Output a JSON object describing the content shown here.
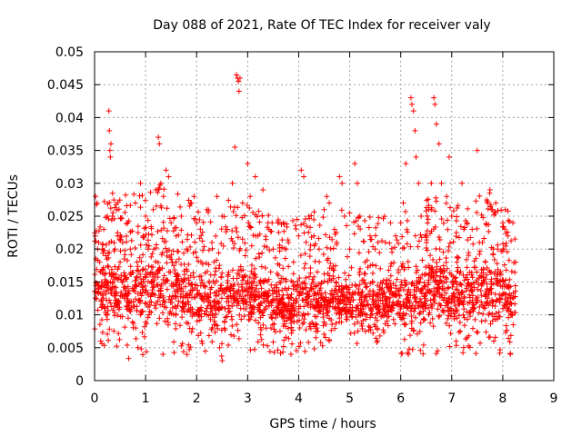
{
  "chart_data": {
    "type": "scatter",
    "title": "Day 088 of 2021, Rate Of TEC Index for receiver valy",
    "xlabel": "GPS time / hours",
    "ylabel": "ROTI / TECUs",
    "xlim": [
      0,
      9
    ],
    "ylim": [
      0,
      0.05
    ],
    "x_ticks": [
      "0",
      "1",
      "2",
      "3",
      "4",
      "5",
      "6",
      "7",
      "8",
      "9"
    ],
    "y_ticks": [
      "0",
      "0.005",
      "0.01",
      "0.015",
      "0.02",
      "0.025",
      "0.03",
      "0.035",
      "0.04",
      "0.045",
      "0.05"
    ],
    "grid": true,
    "marker": "+",
    "color": "#ff0000",
    "series": [
      {
        "name": "ROTI",
        "points": [
          [
            0.02,
            0.028
          ],
          [
            0.05,
            0.027
          ],
          [
            0.08,
            0.021
          ],
          [
            0.1,
            0.018
          ],
          [
            0.12,
            0.006
          ],
          [
            0.15,
            0.02
          ],
          [
            0.18,
            0.023
          ],
          [
            0.22,
            0.019
          ],
          [
            0.25,
            0.025
          ],
          [
            0.28,
            0.041
          ],
          [
            0.29,
            0.038
          ],
          [
            0.3,
            0.035
          ],
          [
            0.31,
            0.034
          ],
          [
            0.32,
            0.036
          ],
          [
            0.35,
            0.025
          ],
          [
            0.4,
            0.02
          ],
          [
            0.45,
            0.022
          ],
          [
            0.5,
            0.018
          ],
          [
            0.55,
            0.021
          ],
          [
            0.6,
            0.016
          ],
          [
            0.65,
            0.024
          ],
          [
            0.7,
            0.02
          ],
          [
            0.8,
            0.027
          ],
          [
            0.85,
            0.005
          ],
          [
            0.9,
            0.03
          ],
          [
            0.95,
            0.022
          ],
          [
            1.0,
            0.025
          ],
          [
            1.05,
            0.02
          ],
          [
            1.15,
            0.026
          ],
          [
            1.2,
            0.029
          ],
          [
            1.25,
            0.037
          ],
          [
            1.27,
            0.036
          ],
          [
            1.3,
            0.03
          ],
          [
            1.35,
            0.028
          ],
          [
            1.4,
            0.032
          ],
          [
            1.45,
            0.031
          ],
          [
            1.5,
            0.024
          ],
          [
            1.6,
            0.022
          ],
          [
            1.7,
            0.025
          ],
          [
            1.8,
            0.02
          ],
          [
            1.9,
            0.027
          ],
          [
            1.95,
            0.028
          ],
          [
            2.0,
            0.024
          ],
          [
            2.1,
            0.006
          ],
          [
            2.2,
            0.026
          ],
          [
            2.3,
            0.021
          ],
          [
            2.4,
            0.028
          ],
          [
            2.45,
            0.005
          ],
          [
            2.5,
            0.025
          ],
          [
            2.6,
            0.023
          ],
          [
            2.7,
            0.03
          ],
          [
            2.78,
            0.0465
          ],
          [
            2.8,
            0.046
          ],
          [
            2.82,
            0.0455
          ],
          [
            2.83,
            0.044
          ],
          [
            2.85,
            0.046
          ],
          [
            2.75,
            0.0355
          ],
          [
            2.9,
            0.027
          ],
          [
            3.0,
            0.033
          ],
          [
            3.05,
            0.028
          ],
          [
            3.15,
            0.031
          ],
          [
            3.2,
            0.022
          ],
          [
            3.3,
            0.029
          ],
          [
            3.4,
            0.024
          ],
          [
            3.5,
            0.02
          ],
          [
            3.6,
            0.016
          ],
          [
            3.7,
            0.024
          ],
          [
            3.8,
            0.021
          ],
          [
            3.85,
            0.004
          ],
          [
            3.9,
            0.018
          ],
          [
            4.0,
            0.022
          ],
          [
            4.05,
            0.032
          ],
          [
            4.1,
            0.031
          ],
          [
            4.2,
            0.025
          ],
          [
            4.3,
            0.022
          ],
          [
            4.4,
            0.02
          ],
          [
            4.5,
            0.026
          ],
          [
            4.55,
            0.028
          ],
          [
            4.6,
            0.027
          ],
          [
            4.7,
            0.023
          ],
          [
            4.8,
            0.031
          ],
          [
            4.85,
            0.03
          ],
          [
            4.9,
            0.025
          ],
          [
            5.0,
            0.02
          ],
          [
            5.1,
            0.033
          ],
          [
            5.15,
            0.03
          ],
          [
            5.2,
            0.025
          ],
          [
            5.3,
            0.018
          ],
          [
            5.4,
            0.022
          ],
          [
            5.5,
            0.02
          ],
          [
            5.6,
            0.017
          ],
          [
            5.7,
            0.021
          ],
          [
            5.8,
            0.024
          ],
          [
            5.9,
            0.022
          ],
          [
            6.0,
            0.024
          ],
          [
            6.05,
            0.027
          ],
          [
            6.1,
            0.033
          ],
          [
            6.15,
            0.004
          ],
          [
            6.2,
            0.043
          ],
          [
            6.22,
            0.042
          ],
          [
            6.25,
            0.041
          ],
          [
            6.28,
            0.038
          ],
          [
            6.3,
            0.034
          ],
          [
            6.35,
            0.03
          ],
          [
            6.4,
            0.025
          ],
          [
            6.5,
            0.022
          ],
          [
            6.55,
            0.026
          ],
          [
            6.6,
            0.03
          ],
          [
            6.65,
            0.043
          ],
          [
            6.67,
            0.042
          ],
          [
            6.7,
            0.039
          ],
          [
            6.75,
            0.036
          ],
          [
            6.8,
            0.03
          ],
          [
            6.9,
            0.028
          ],
          [
            6.95,
            0.034
          ],
          [
            7.0,
            0.025
          ],
          [
            7.1,
            0.018
          ],
          [
            7.2,
            0.03
          ],
          [
            7.3,
            0.024
          ],
          [
            7.4,
            0.023
          ],
          [
            7.5,
            0.035
          ],
          [
            7.6,
            0.021
          ],
          [
            7.7,
            0.027
          ],
          [
            7.75,
            0.029
          ],
          [
            7.8,
            0.026
          ],
          [
            7.9,
            0.02
          ],
          [
            8.0,
            0.024
          ],
          [
            8.05,
            0.026
          ],
          [
            8.1,
            0.022
          ],
          [
            8.15,
            0.004
          ],
          [
            8.2,
            0.024
          ],
          [
            8.25,
            0.018
          ]
        ],
        "dense_band": [
          [
            0.0,
            0.009,
            0.018
          ],
          [
            0.25,
            0.008,
            0.02
          ],
          [
            0.5,
            0.008,
            0.019
          ],
          [
            0.75,
            0.007,
            0.02
          ],
          [
            1.0,
            0.008,
            0.02
          ],
          [
            1.25,
            0.008,
            0.021
          ],
          [
            1.5,
            0.008,
            0.02
          ],
          [
            1.75,
            0.008,
            0.019
          ],
          [
            2.0,
            0.007,
            0.018
          ],
          [
            2.25,
            0.007,
            0.017
          ],
          [
            2.5,
            0.007,
            0.018
          ],
          [
            2.75,
            0.008,
            0.019
          ],
          [
            3.0,
            0.008,
            0.018
          ],
          [
            3.25,
            0.008,
            0.017
          ],
          [
            3.5,
            0.008,
            0.016
          ],
          [
            3.75,
            0.007,
            0.015
          ],
          [
            4.0,
            0.008,
            0.016
          ],
          [
            4.25,
            0.008,
            0.017
          ],
          [
            4.5,
            0.008,
            0.016
          ],
          [
            4.75,
            0.008,
            0.017
          ],
          [
            5.0,
            0.008,
            0.017
          ],
          [
            5.25,
            0.008,
            0.016
          ],
          [
            5.5,
            0.008,
            0.016
          ],
          [
            5.75,
            0.009,
            0.016
          ],
          [
            6.0,
            0.008,
            0.016
          ],
          [
            6.25,
            0.008,
            0.018
          ],
          [
            6.5,
            0.008,
            0.019
          ],
          [
            6.75,
            0.008,
            0.02
          ],
          [
            7.0,
            0.008,
            0.018
          ],
          [
            7.25,
            0.008,
            0.018
          ],
          [
            7.5,
            0.008,
            0.019
          ],
          [
            7.75,
            0.008,
            0.02
          ],
          [
            8.0,
            0.008,
            0.019
          ],
          [
            8.25,
            0.007,
            0.017
          ]
        ]
      }
    ]
  }
}
